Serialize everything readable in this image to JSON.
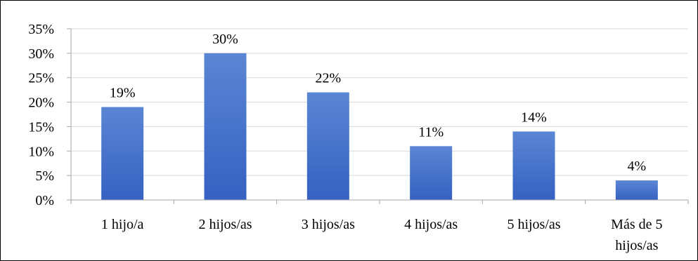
{
  "chart_data": {
    "type": "bar",
    "categories": [
      "1 hijo/a",
      "2 hijos/as",
      "3 hijos/as",
      "4 hijos/as",
      "5 hijos/as",
      "Más de 5 hijos/as"
    ],
    "category_lines": [
      [
        "1 hijo/a"
      ],
      [
        "2 hijos/as"
      ],
      [
        "3 hijos/as"
      ],
      [
        "4 hijos/as"
      ],
      [
        "5 hijos/as"
      ],
      [
        "Más de 5",
        "hijos/as"
      ]
    ],
    "values": [
      19,
      30,
      22,
      11,
      14,
      4
    ],
    "data_labels": [
      "19%",
      "30%",
      "22%",
      "11%",
      "14%",
      "4%"
    ],
    "ylim": [
      0,
      35
    ],
    "y_ticks": [
      0,
      5,
      10,
      15,
      20,
      25,
      30,
      35
    ],
    "y_tick_labels": [
      "0%",
      "5%",
      "10%",
      "15%",
      "20%",
      "25%",
      "30%",
      "35%"
    ],
    "grid": true,
    "legend": "none",
    "colors": {
      "bar_top": "#5B86D4",
      "bar_bottom": "#3561C2",
      "grid": "#D9D9D9",
      "axis": "#A6A6A6"
    }
  }
}
